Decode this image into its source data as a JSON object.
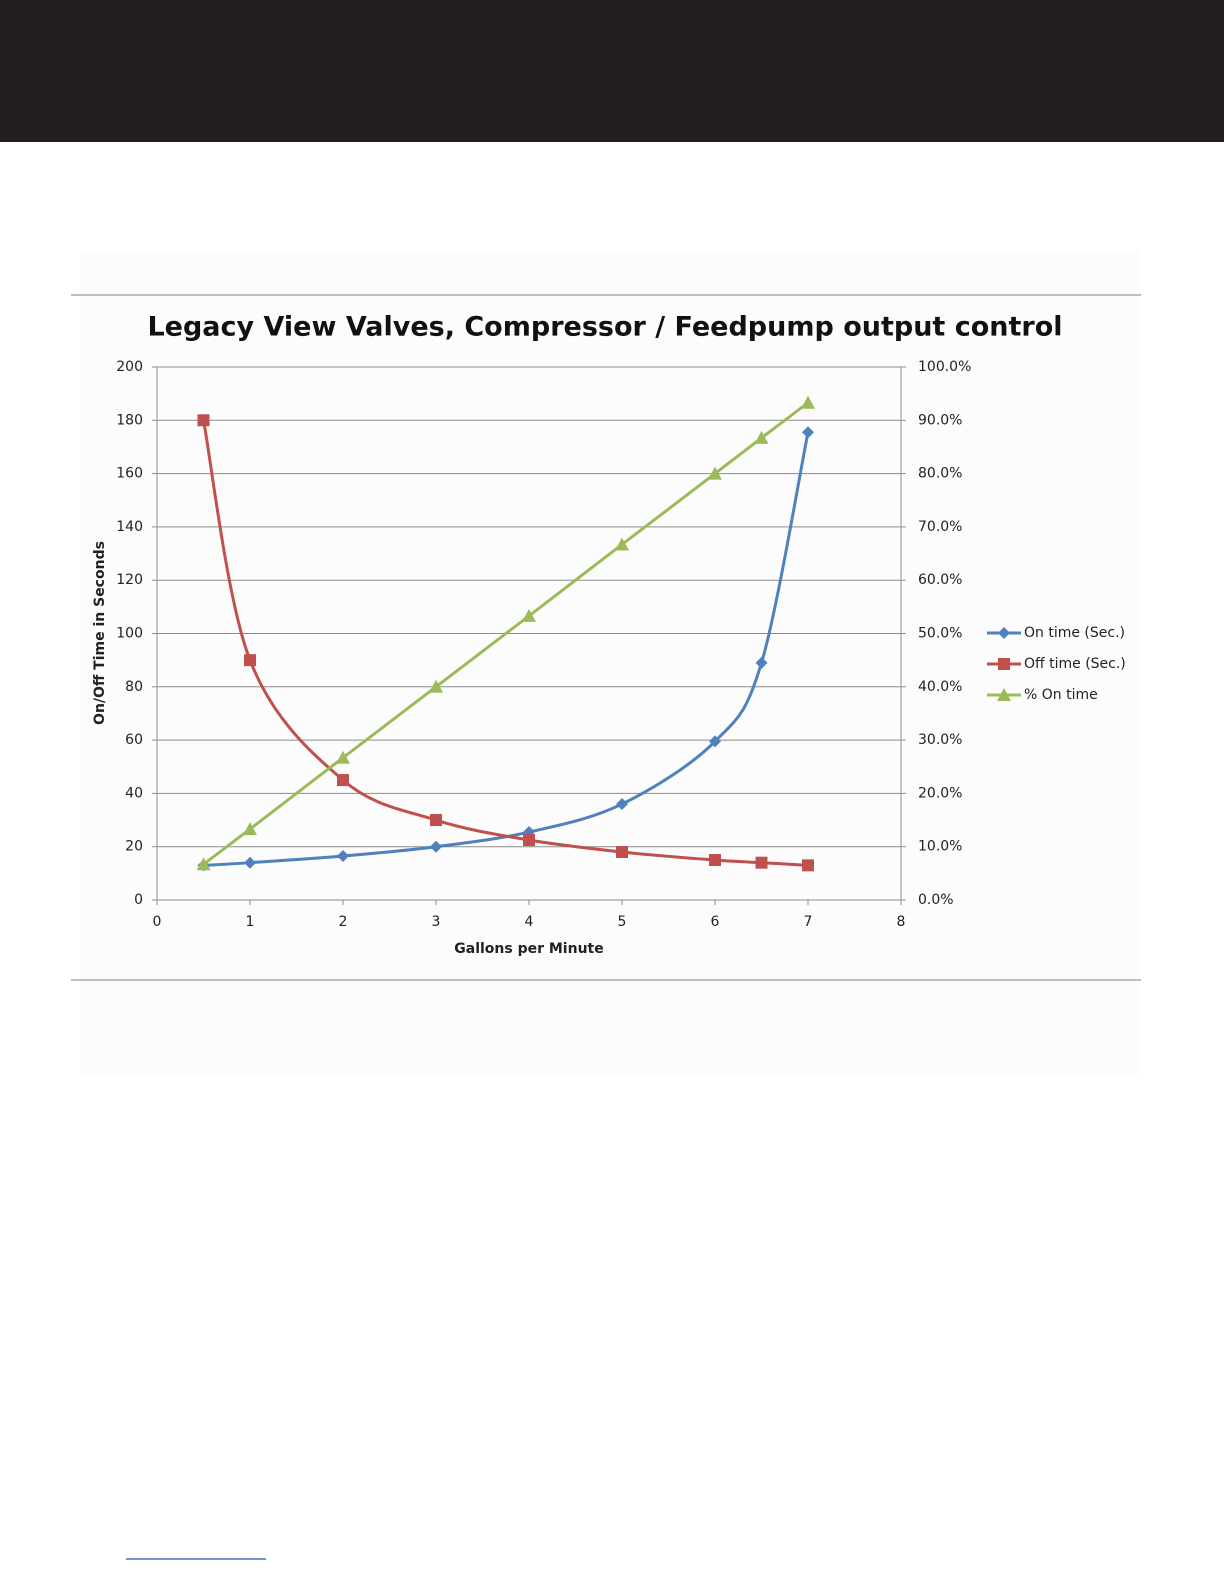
{
  "chart_data": {
    "type": "line",
    "title": "Legacy View Valves, Compressor / Feedpump output control",
    "x_label": "Gallons per Minute",
    "y_label": "On/Off Time in Seconds",
    "x": [
      0.5,
      1,
      2,
      3,
      4,
      5,
      6,
      6.5,
      7
    ],
    "series": [
      {
        "name": "On time (Sec.)",
        "color": "#4f81bd",
        "marker": "diamond",
        "values": [
          13,
          14,
          16.5,
          20,
          25.5,
          36,
          59.5,
          89,
          175.5
        ]
      },
      {
        "name": "Off time (Sec.)",
        "color": "#c0504d",
        "marker": "square",
        "values": [
          180,
          90,
          45,
          30,
          22.5,
          18,
          15,
          14,
          13
        ]
      },
      {
        "name": "% On time",
        "color": "#9bbb59",
        "marker": "triangle",
        "axis": "y2",
        "values": [
          6.7,
          13.3,
          26.7,
          40,
          53.3,
          66.7,
          80,
          86.7,
          93.3
        ]
      }
    ],
    "xlim": [
      0,
      8
    ],
    "xticks": [
      0,
      1,
      2,
      3,
      4,
      5,
      6,
      7,
      8
    ],
    "ylim": [
      0,
      200
    ],
    "yticks": [
      0,
      20,
      40,
      60,
      80,
      100,
      120,
      140,
      160,
      180,
      200
    ],
    "y2lim": [
      0,
      100
    ],
    "y2ticks": [
      {
        "value": 0,
        "label": "0.0%"
      },
      {
        "value": 10,
        "label": "10.0%"
      },
      {
        "value": 20,
        "label": "20.0%"
      },
      {
        "value": 30,
        "label": "30.0%"
      },
      {
        "value": 40,
        "label": "40.0%"
      },
      {
        "value": 50,
        "label": "50.0%"
      },
      {
        "value": 60,
        "label": "60.0%"
      },
      {
        "value": 70,
        "label": "70.0%"
      },
      {
        "value": 80,
        "label": "80.0%"
      },
      {
        "value": 90,
        "label": "90.0%"
      },
      {
        "value": 100,
        "label": "100.0%"
      }
    ],
    "grid": true,
    "smooth": true,
    "legend": "right"
  }
}
